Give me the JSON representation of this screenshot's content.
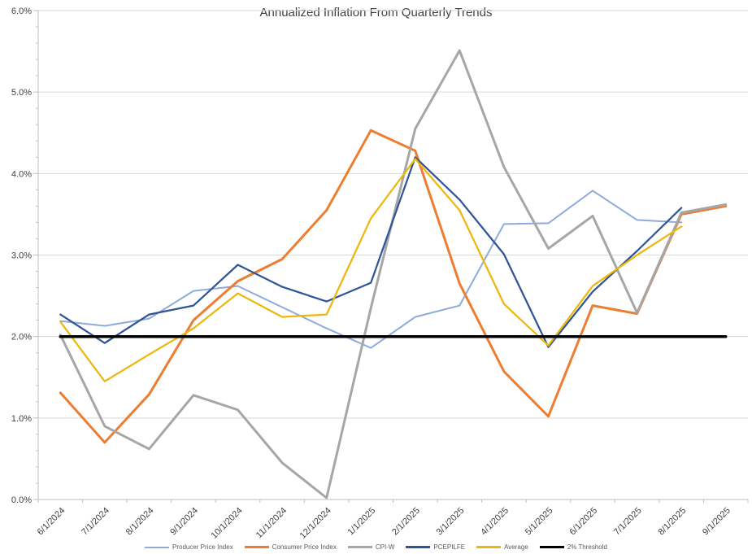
{
  "chart_data": {
    "type": "line",
    "title": "Annualized Inflation From Quarterly Trends",
    "xlabel": "",
    "ylabel": "",
    "ylim": [
      0,
      6
    ],
    "ytick_step": 1,
    "ytick_minor_step": 0.2,
    "ytick_suffix": "%",
    "grid": true,
    "legend_position": "bottom",
    "grid_color": "#D9D9D9",
    "axis_color": "#BFBFBF",
    "label_color": "#404040",
    "categories": [
      "6/1/2024",
      "7/1/2024",
      "8/1/2024",
      "9/1/2024",
      "10/1/2024",
      "11/1/2024",
      "12/1/2024",
      "1/1/2025",
      "2/1/2025",
      "3/1/2025",
      "4/1/2025",
      "5/1/2025",
      "6/1/2025",
      "7/1/2025",
      "8/1/2025",
      "9/1/2025"
    ],
    "series": [
      {
        "name": "Producer Price Index",
        "color": "#8FAADC",
        "width": 2,
        "values": [
          2.19,
          2.13,
          2.22,
          2.56,
          2.62,
          2.36,
          2.1,
          1.86,
          2.24,
          2.38,
          3.38,
          3.39,
          3.79,
          3.43,
          3.4,
          null
        ]
      },
      {
        "name": "Consumer Price Index",
        "color": "#ED7D31",
        "width": 3,
        "values": [
          1.31,
          0.7,
          1.29,
          2.2,
          2.68,
          2.95,
          3.55,
          4.53,
          4.28,
          2.65,
          1.57,
          1.02,
          2.38,
          2.28,
          3.5,
          3.6
        ]
      },
      {
        "name": "CPI-W",
        "color": "#A6A6A6",
        "width": 3,
        "values": [
          2.02,
          0.9,
          0.62,
          1.28,
          1.1,
          0.45,
          0.02,
          2.35,
          4.55,
          5.51,
          4.08,
          3.08,
          3.48,
          2.29,
          3.52,
          3.62
        ]
      },
      {
        "name": "PCEPILFE",
        "color": "#2F5597",
        "width": 2.25,
        "values": [
          2.27,
          1.92,
          2.27,
          2.38,
          2.88,
          2.61,
          2.43,
          2.66,
          4.2,
          3.68,
          3.01,
          1.87,
          2.55,
          3.05,
          3.58,
          null
        ]
      },
      {
        "name": "Average",
        "color": "#EDB70D",
        "width": 2.25,
        "values": [
          2.18,
          1.45,
          1.78,
          2.1,
          2.53,
          2.24,
          2.27,
          3.45,
          4.18,
          3.55,
          2.4,
          1.89,
          2.62,
          3.0,
          3.35,
          null
        ]
      },
      {
        "name": "2% Threshold",
        "color": "#000000",
        "width": 3.5,
        "values": [
          2,
          2,
          2,
          2,
          2,
          2,
          2,
          2,
          2,
          2,
          2,
          2,
          2,
          2,
          2,
          2
        ]
      }
    ]
  }
}
